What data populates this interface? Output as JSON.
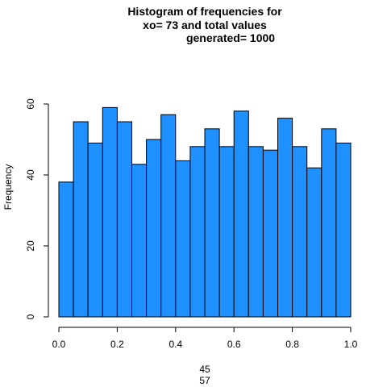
{
  "chart_data": {
    "type": "bar",
    "title_lines": [
      "Histogram of frequencies for",
      "xo= 73  and total values",
      "generated= 1000"
    ],
    "xlabel_lines": [
      "45",
      "57"
    ],
    "ylabel": "Frequency",
    "bar_color": "#1E90FF",
    "bin_edges": [
      0.0,
      0.05,
      0.1,
      0.15,
      0.2,
      0.25,
      0.3,
      0.35,
      0.4,
      0.45,
      0.5,
      0.55,
      0.6,
      0.65,
      0.7,
      0.75,
      0.8,
      0.85,
      0.9,
      0.95,
      1.0
    ],
    "values": [
      38,
      55,
      49,
      59,
      55,
      43,
      50,
      57,
      44,
      48,
      53,
      48,
      58,
      48,
      47,
      56,
      48,
      42,
      53,
      49
    ],
    "xlim": [
      0.0,
      1.0
    ],
    "ylim": [
      0,
      60
    ],
    "x_ticks": [
      "0.0",
      "0.2",
      "0.4",
      "0.6",
      "0.8",
      "1.0"
    ],
    "y_ticks": [
      "0",
      "20",
      "40",
      "60"
    ]
  }
}
